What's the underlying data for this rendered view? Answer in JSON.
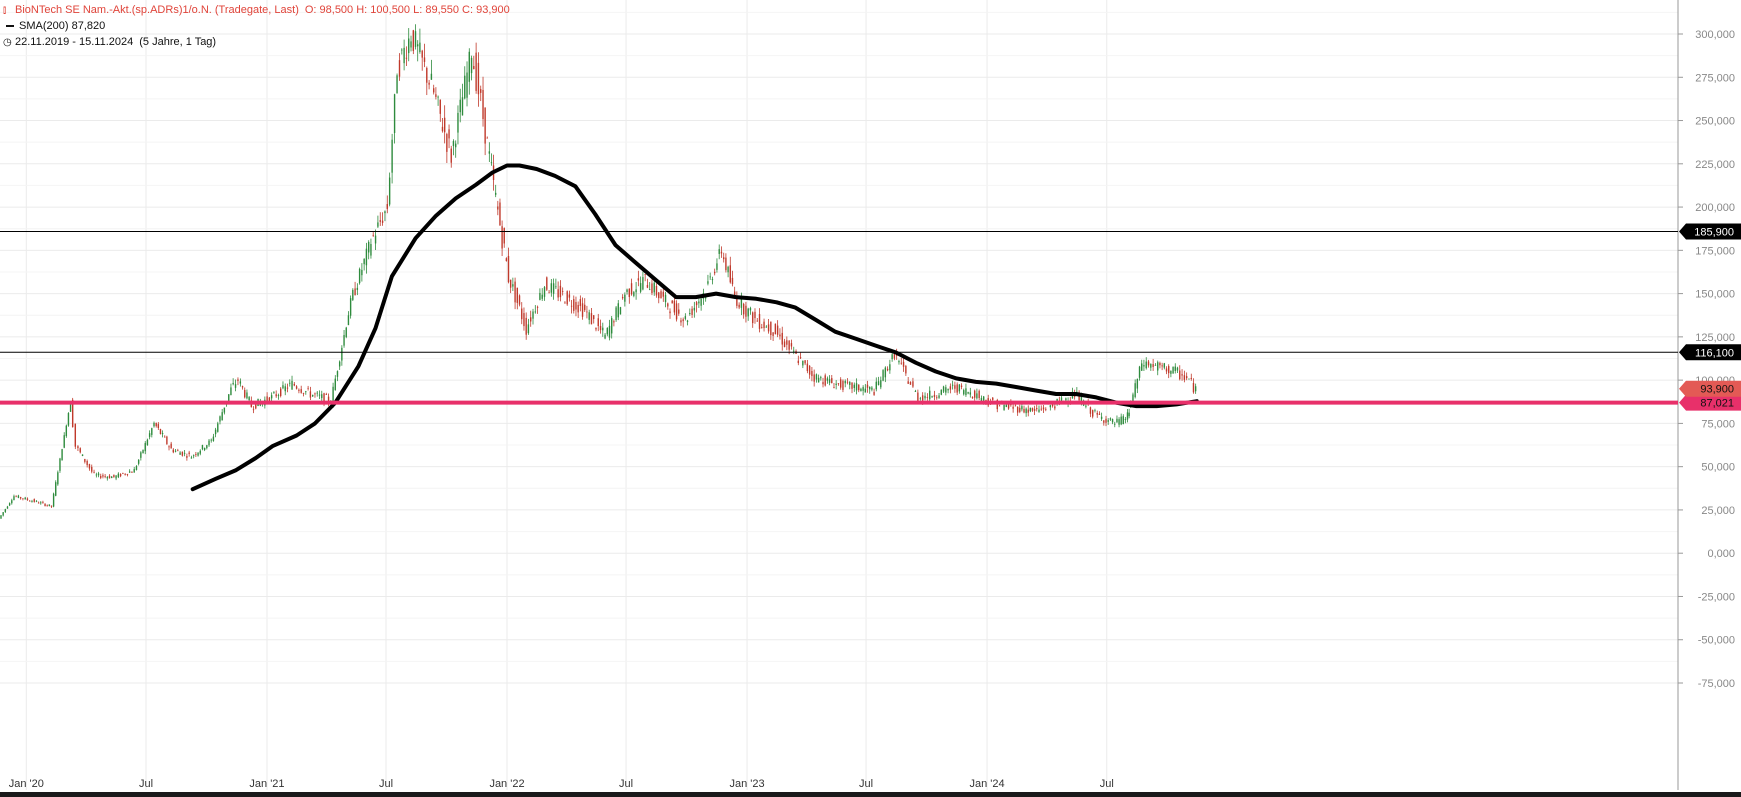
{
  "legend": {
    "instrument": "BioNTech SE Nam.-Akt.(sp.ADRs)1/o.N. (Tradegate, Last)",
    "ohlc": "O: 98,500   H: 100,500   L: 89,550   C: 93,900",
    "sma_label": "SMA(200)",
    "sma_value": "87,820",
    "range": "22.11.2019 - 15.11.2024",
    "period": "(5 Jahre, 1 Tag)"
  },
  "colors": {
    "up": "#2e8b3d",
    "down": "#c0392b",
    "sma": "#000000",
    "highlight": "#e8306a",
    "legend_text": "#e0443a",
    "grid": "#ebebeb",
    "axis_text": "#888888"
  },
  "chart_data": {
    "type": "line",
    "title": "",
    "xlabel": "",
    "ylabel": "",
    "ylim": [
      -80000,
      320000
    ],
    "yticks": [
      "300,000",
      "275,000",
      "250,000",
      "225,000",
      "200,000",
      "175,000",
      "150,000",
      "125,000",
      "100,000",
      "75,000",
      "50,000",
      "25,000",
      "0,000",
      "-25,000",
      "-50,000",
      "-75,000"
    ],
    "xticks": [
      {
        "label": "Jan '20",
        "date": "2020-01"
      },
      {
        "label": "Jul",
        "date": "2020-07"
      },
      {
        "label": "Jan '21",
        "date": "2021-01"
      },
      {
        "label": "Jul",
        "date": "2021-07"
      },
      {
        "label": "Jan '22",
        "date": "2022-01"
      },
      {
        "label": "Jul",
        "date": "2022-07"
      },
      {
        "label": "Jan '23",
        "date": "2023-01"
      },
      {
        "label": "Jul",
        "date": "2023-07"
      },
      {
        "label": "Jan '24",
        "date": "2024-01"
      },
      {
        "label": "Jul",
        "date": "2024-07"
      }
    ],
    "series": [
      {
        "kind": "price",
        "x": [
          "2019-11-22",
          "2019-12-15",
          "2020-01-15",
          "2020-02-10",
          "2020-03-10",
          "2020-03-18",
          "2020-04-15",
          "2020-05-15",
          "2020-06-15",
          "2020-07-15",
          "2020-08-10",
          "2020-09-10",
          "2020-10-10",
          "2020-11-09",
          "2020-11-20",
          "2020-12-10",
          "2021-01-10",
          "2021-02-10",
          "2021-03-10",
          "2021-04-10",
          "2021-05-10",
          "2021-06-10",
          "2021-07-05",
          "2021-07-20",
          "2021-08-10",
          "2021-08-20",
          "2021-09-10",
          "2021-10-10",
          "2021-11-10",
          "2021-11-24",
          "2021-12-10",
          "2022-01-05",
          "2022-02-01",
          "2022-03-01",
          "2022-04-01",
          "2022-05-01",
          "2022-06-01",
          "2022-07-01",
          "2022-08-01",
          "2022-09-01",
          "2022-10-01",
          "2022-11-01",
          "2022-11-25",
          "2022-12-15",
          "2023-01-15",
          "2023-02-15",
          "2023-03-15",
          "2023-04-15",
          "2023-05-15",
          "2023-06-15",
          "2023-07-15",
          "2023-08-15",
          "2023-09-05",
          "2023-09-20",
          "2023-10-15",
          "2023-11-15",
          "2023-12-15",
          "2024-01-15",
          "2024-02-15",
          "2024-03-15",
          "2024-04-15",
          "2024-05-15",
          "2024-06-15",
          "2024-07-15",
          "2024-07-31",
          "2024-08-05",
          "2024-08-25",
          "2024-09-15",
          "2024-10-15",
          "2024-11-05",
          "2024-11-15"
        ],
        "y": [
          20000,
          33000,
          30000,
          27000,
          88000,
          62000,
          45000,
          44000,
          48000,
          75000,
          60000,
          56000,
          65000,
          95000,
          100000,
          85000,
          90000,
          98000,
          92000,
          88000,
          145000,
          180000,
          200000,
          280000,
          300000,
          290000,
          270000,
          230000,
          290000,
          260000,
          220000,
          160000,
          130000,
          155000,
          148000,
          140000,
          125000,
          150000,
          158000,
          145000,
          135000,
          152000,
          175000,
          148000,
          135000,
          128000,
          115000,
          102000,
          98000,
          96000,
          94000,
          115000,
          100000,
          90000,
          92000,
          96000,
          92000,
          86000,
          84000,
          82000,
          86000,
          92000,
          80000,
          75000,
          78000,
          82000,
          110000,
          108000,
          105000,
          100000,
          93900
        ]
      },
      {
        "name": "SMA(200)",
        "kind": "sma",
        "x": [
          "2020-09-10",
          "2020-10-15",
          "2020-11-15",
          "2020-12-15",
          "2021-01-10",
          "2021-02-15",
          "2021-03-15",
          "2021-04-15",
          "2021-05-20",
          "2021-06-15",
          "2021-07-10",
          "2021-08-15",
          "2021-09-15",
          "2021-10-15",
          "2021-11-15",
          "2021-12-10",
          "2022-01-01",
          "2022-01-20",
          "2022-02-15",
          "2022-03-15",
          "2022-04-15",
          "2022-05-15",
          "2022-06-15",
          "2022-07-15",
          "2022-08-15",
          "2022-09-15",
          "2022-10-15",
          "2022-11-15",
          "2022-12-15",
          "2023-01-15",
          "2023-02-15",
          "2023-03-15",
          "2023-04-15",
          "2023-05-15",
          "2023-06-15",
          "2023-07-15",
          "2023-08-15",
          "2023-09-15",
          "2023-10-15",
          "2023-11-15",
          "2023-12-15",
          "2024-01-15",
          "2024-02-15",
          "2024-03-15",
          "2024-04-15",
          "2024-05-15",
          "2024-06-15",
          "2024-07-15",
          "2024-08-15",
          "2024-09-15",
          "2024-10-15",
          "2024-11-15"
        ],
        "y": [
          37000,
          43000,
          48000,
          55000,
          62000,
          68000,
          75000,
          87000,
          108000,
          130000,
          160000,
          182000,
          195000,
          205000,
          213000,
          220000,
          224000,
          224000,
          222000,
          218000,
          212000,
          196000,
          178000,
          168000,
          158000,
          148000,
          148000,
          150000,
          148000,
          147000,
          145000,
          142000,
          135000,
          128000,
          124000,
          120000,
          116000,
          110000,
          105000,
          101000,
          99000,
          98000,
          96000,
          94000,
          92000,
          92000,
          90000,
          87000,
          85000,
          85000,
          86000,
          87820
        ]
      }
    ],
    "hlines": [
      {
        "value": 185900,
        "label": "185,900",
        "style": "thin"
      },
      {
        "value": 116100,
        "label": "116,100",
        "style": "thin"
      },
      {
        "value": 87021,
        "label": "87,021",
        "style": "thick"
      }
    ],
    "last_price": {
      "value": 93900,
      "label": "93,900"
    },
    "grid": true,
    "legend_position": "top-left"
  }
}
